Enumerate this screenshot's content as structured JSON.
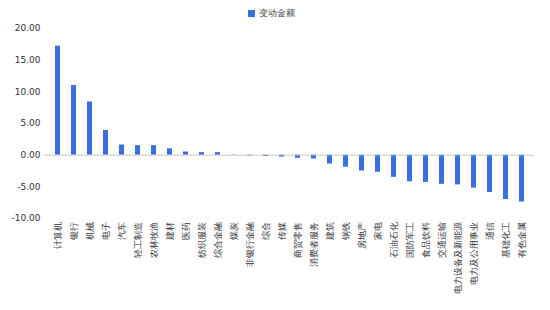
{
  "chart_data": {
    "type": "bar",
    "categories": [
      "计算机",
      "银行",
      "机械",
      "电子",
      "汽车",
      "轻工制造",
      "农林牧渔",
      "建材",
      "医药",
      "纺织服装",
      "综合金融",
      "煤炭",
      "非银行金融",
      "综合",
      "传媒",
      "商贸零售",
      "消费者服务",
      "建筑",
      "钢铁",
      "房地产",
      "家电",
      "石油石化",
      "国防军工",
      "食品饮料",
      "交通运输",
      "电力设备及新能源",
      "电力及公用事业",
      "通信",
      "基础化工",
      "有色金属"
    ],
    "series": [
      {
        "name": "变动金额",
        "color": "#3a6fe0",
        "values": [
          17.2,
          11.0,
          8.4,
          3.9,
          1.6,
          1.5,
          1.5,
          1.0,
          0.5,
          0.4,
          0.4,
          0.05,
          -0.1,
          -0.2,
          -0.3,
          -0.5,
          -0.6,
          -1.4,
          -1.9,
          -2.5,
          -2.7,
          -3.5,
          -4.2,
          -4.3,
          -4.6,
          -4.7,
          -5.2,
          -5.9,
          -7.0,
          -7.4
        ]
      }
    ],
    "ylim": [
      -10,
      20
    ],
    "yticks": [
      {
        "value": -10,
        "label": "-10.00"
      },
      {
        "value": -5,
        "label": "-5.00"
      },
      {
        "value": 0,
        "label": "0.00"
      },
      {
        "value": 5,
        "label": "5.00"
      },
      {
        "value": 10,
        "label": "10.00"
      },
      {
        "value": 15,
        "label": "15.00"
      },
      {
        "value": 20,
        "label": "20.00"
      }
    ],
    "grid": false,
    "legend": "top"
  }
}
